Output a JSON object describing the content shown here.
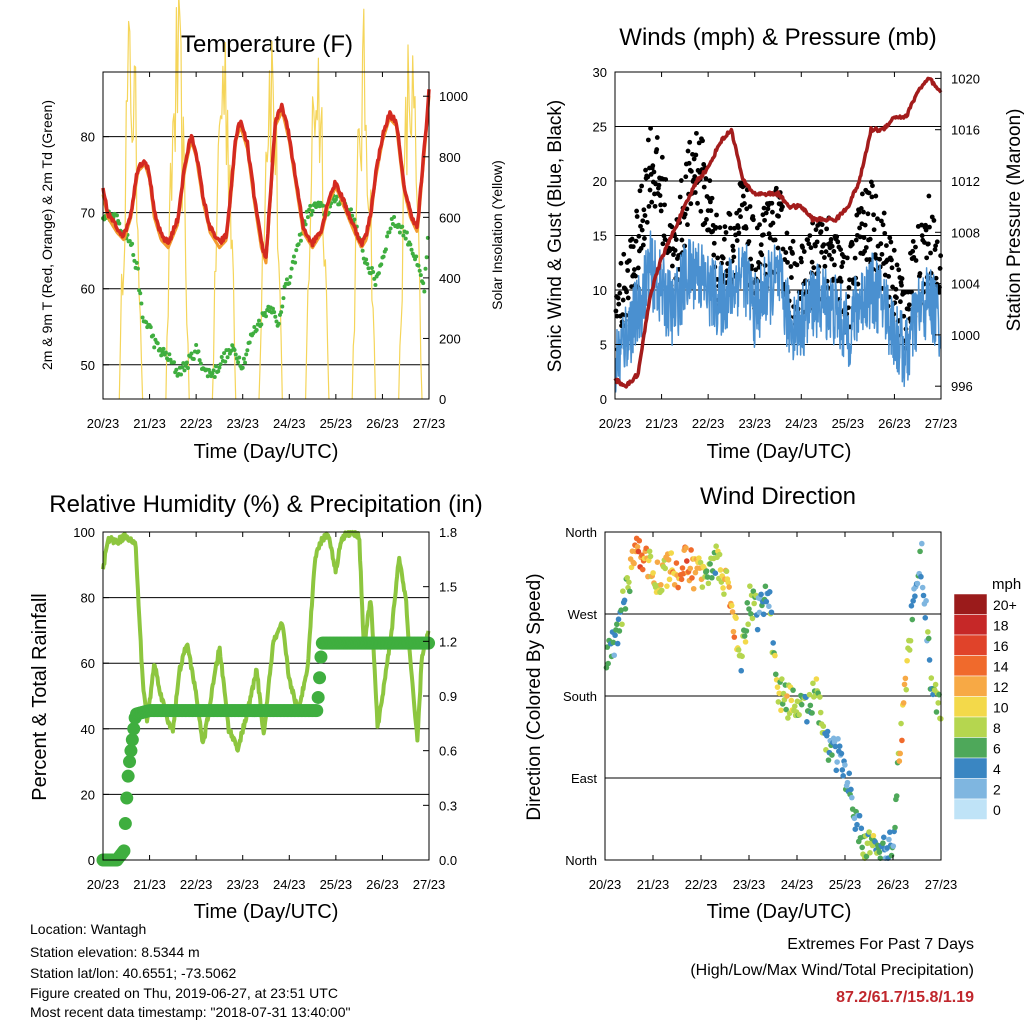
{
  "panels": {
    "temperature": {
      "title": "Temperature (F)",
      "xlabel": "Time (Day/UTC)",
      "ylabel_left": "2m & 9m T (Red, Orange) & 2m Td (Green)",
      "ylabel_right": "Solar Insolation (Yellow)",
      "xticks": [
        "20/23",
        "21/23",
        "22/23",
        "23/23",
        "24/23",
        "25/23",
        "26/23",
        "27/23"
      ],
      "yticks_left": [
        "50",
        "60",
        "70",
        "80"
      ],
      "yticks_right": [
        "0",
        "200",
        "400",
        "600",
        "800",
        "1000"
      ]
    },
    "winds": {
      "title": "Winds (mph) & Pressure (mb)",
      "xlabel": "Time (Day/UTC)",
      "ylabel_left": "Sonic Wind & Gust (Blue, Black)",
      "ylabel_right": "Station Pressure (Maroon)",
      "xticks": [
        "20/23",
        "21/23",
        "22/23",
        "23/23",
        "24/23",
        "25/23",
        "26/23",
        "27/23"
      ],
      "yticks_left": [
        "0",
        "5",
        "10",
        "15",
        "20",
        "25",
        "30"
      ],
      "yticks_right": [
        "996",
        "1000",
        "1004",
        "1008",
        "1012",
        "1016",
        "1020"
      ]
    },
    "humidity": {
      "title": "Relative Humidity (%) & Precipitation (in)",
      "xlabel": "Time (Day/UTC)",
      "ylabel_left": "Percent & Total Rainfall",
      "xticks": [
        "20/23",
        "21/23",
        "22/23",
        "23/23",
        "24/23",
        "25/23",
        "26/23",
        "27/23"
      ],
      "yticks_left": [
        "0",
        "20",
        "40",
        "60",
        "80",
        "100"
      ],
      "yticks_right": [
        "0.0",
        "0.3",
        "0.6",
        "0.9",
        "1.2",
        "1.5",
        "1.8"
      ]
    },
    "direction": {
      "title": "Wind Direction",
      "xlabel": "Time (Day/UTC)",
      "ylabel_left": "Direction (Colored By Speed)",
      "xticks": [
        "20/23",
        "21/23",
        "22/23",
        "23/23",
        "24/23",
        "25/23",
        "26/23",
        "27/23"
      ],
      "yticks_left": [
        "North",
        "East",
        "South",
        "West",
        "North"
      ],
      "legend_title": "mph",
      "legend_labels": [
        "20+",
        "18",
        "16",
        "14",
        "12",
        "10",
        "8",
        "6",
        "4",
        "2",
        "0"
      ],
      "legend_colors": [
        "#9b1b1b",
        "#c62828",
        "#e0432a",
        "#f06a2c",
        "#f7a945",
        "#f3d94a",
        "#b5d64f",
        "#4ea85a",
        "#3a86c2",
        "#7fb6e0",
        "#bfe3f7"
      ]
    }
  },
  "footer": {
    "location": "Location: Wantagh",
    "elevation": "Station elevation: 8.5344 m",
    "latlon": "Station lat/lon: 40.6551; -73.5062",
    "created": "Figure created on Thu, 2019-06-27, at 23:51 UTC",
    "recent": "Most recent data timestamp: \"2018-07-31 13:40:00\""
  },
  "extremes": {
    "title": "Extremes For Past 7 Days",
    "subtitle": "(High/Low/Max Wind/Total Precipitation)",
    "values": "87.2/61.7/15.8/1.19"
  },
  "colors": {
    "temp_2m": "#d42a20",
    "temp_9m": "#f29a2e",
    "dewpoint": "#3fae3f",
    "insolation": "#f5d55a",
    "wind": "#4a90d0",
    "gust": "#000000",
    "pressure": "#a31c1c",
    "rh": "#8dc63f",
    "precip": "#3fae3f",
    "extremes": "#c0272d"
  },
  "chart_data": [
    {
      "type": "line",
      "title": "Temperature (F)",
      "xlabel": "Time (Day/UTC)",
      "ylabel": "2m & 9m T (Red, Orange) & 2m Td (Green)",
      "y2label": "Solar Insolation (Yellow)",
      "ylim": [
        45.5,
        88.5
      ],
      "y2lim": [
        0,
        1080
      ],
      "x_range": [
        0,
        7
      ],
      "series": [
        {
          "name": "2m T",
          "axis": "left",
          "x": [
            0,
            0.1,
            0.2,
            0.3,
            0.45,
            0.6,
            0.75,
            0.9,
            1.0,
            1.1,
            1.25,
            1.4,
            1.6,
            1.75,
            1.85,
            1.9,
            2.0,
            2.15,
            2.3,
            2.5,
            2.65,
            2.75,
            2.85,
            2.95,
            3.1,
            3.25,
            3.4,
            3.5,
            3.6,
            3.7,
            3.85,
            4.0,
            4.15,
            4.3,
            4.5,
            4.7,
            4.85,
            5.0,
            5.2,
            5.4,
            5.55,
            5.65,
            5.75,
            5.85,
            6.0,
            6.15,
            6.3,
            6.45,
            6.6,
            6.75,
            6.85,
            6.95,
            7.0
          ],
          "values": [
            73,
            70,
            69,
            68,
            67,
            70,
            76,
            77,
            75,
            70,
            67,
            66,
            69,
            76,
            79,
            80,
            78,
            72,
            68,
            66,
            67,
            73,
            80,
            82,
            79,
            72,
            66,
            64,
            73,
            82,
            84,
            80,
            74,
            68,
            66,
            68,
            72,
            74,
            71,
            68,
            66,
            67,
            70,
            75,
            80,
            83,
            82,
            74,
            70,
            68,
            75,
            82,
            86
          ]
        },
        {
          "name": "2m Td",
          "axis": "left",
          "x": [
            0,
            0.2,
            0.4,
            0.6,
            0.75,
            0.85,
            1.0,
            1.1,
            1.2,
            1.4,
            1.6,
            1.8,
            1.9,
            2.0,
            2.2,
            2.4,
            2.6,
            2.8,
            3.0,
            3.2,
            3.4,
            3.6,
            3.75,
            3.9,
            4.0,
            4.2,
            4.4,
            4.6,
            4.8,
            5.0,
            5.2,
            5.4,
            5.55,
            5.7,
            5.85,
            6.0,
            6.2,
            6.4,
            6.6,
            6.75,
            6.9,
            7.0
          ],
          "values": [
            69,
            70,
            68,
            66,
            62,
            56,
            55,
            53,
            52,
            51,
            49,
            50,
            51,
            52,
            49,
            49,
            51,
            52,
            50,
            54,
            56,
            58,
            55,
            60,
            61,
            66,
            70,
            71,
            70,
            72,
            71,
            69,
            65,
            63,
            61,
            64,
            69,
            68,
            66,
            63,
            60,
            68
          ]
        },
        {
          "name": "Solar Insolation",
          "axis": "right",
          "x": [
            0.35,
            0.55,
            0.65,
            0.8,
            1.35,
            1.55,
            1.65,
            1.8,
            2.35,
            2.55,
            2.7,
            2.85,
            3.35,
            3.55,
            3.65,
            3.8,
            4.35,
            4.55,
            4.65,
            4.8,
            5.35,
            5.55,
            5.7,
            5.85,
            6.35,
            6.55,
            6.7,
            6.85
          ],
          "values": [
            0,
            950,
            1050,
            0,
            0,
            950,
            1050,
            0,
            0,
            880,
            1050,
            0,
            0,
            950,
            1050,
            0,
            0,
            950,
            1050,
            0,
            0,
            900,
            1000,
            0,
            0,
            950,
            1000,
            0
          ]
        }
      ]
    },
    {
      "type": "scatter",
      "title": "Winds (mph) & Pressure (mb)",
      "xlabel": "Time (Day/UTC)",
      "ylabel": "Sonic Wind & Gust (Blue, Black)",
      "y2label": "Station Pressure (Maroon)",
      "ylim": [
        0,
        30
      ],
      "y2lim": [
        995,
        1020.5
      ],
      "x_range": [
        0,
        7
      ],
      "series": [
        {
          "name": "Sonic Wind",
          "axis": "left",
          "x": [
            0,
            0.25,
            0.5,
            0.75,
            1.0,
            1.25,
            1.5,
            1.75,
            2.0,
            2.25,
            2.5,
            2.75,
            3.0,
            3.25,
            3.5,
            3.75,
            4.0,
            4.25,
            4.5,
            4.75,
            5.0,
            5.25,
            5.5,
            5.75,
            6.0,
            6.25,
            6.5,
            6.75,
            7.0
          ],
          "values": [
            3,
            6,
            8,
            12,
            10,
            8,
            11,
            12,
            10,
            9,
            10,
            12,
            8,
            10,
            11,
            7,
            7,
            9,
            9,
            8,
            6,
            9,
            10,
            9,
            6,
            4,
            8,
            9,
            7
          ]
        },
        {
          "name": "Gust",
          "axis": "left",
          "x": [
            0,
            0.25,
            0.5,
            0.75,
            1.0,
            1.25,
            1.5,
            1.75,
            2.0,
            2.25,
            2.5,
            2.75,
            3.0,
            3.25,
            3.5,
            3.75,
            4.0,
            4.25,
            4.5,
            4.75,
            5.0,
            5.25,
            5.5,
            5.75,
            6.0,
            6.25,
            6.5,
            6.75,
            7.0
          ],
          "values": [
            8,
            10,
            14,
            22,
            19,
            12,
            18,
            22,
            18,
            12,
            14,
            17,
            12,
            14,
            16,
            11,
            10,
            13,
            13,
            12,
            9,
            15,
            16,
            14,
            10,
            8,
            12,
            15,
            10
          ]
        },
        {
          "name": "Station Pressure",
          "axis": "right",
          "x": [
            0,
            0.25,
            0.5,
            0.75,
            1.0,
            1.25,
            1.5,
            1.75,
            2.0,
            2.25,
            2.5,
            2.75,
            3.0,
            3.25,
            3.5,
            3.75,
            4.0,
            4.25,
            4.5,
            4.75,
            5.0,
            5.25,
            5.5,
            5.75,
            6.0,
            6.25,
            6.5,
            6.75,
            6.95,
            7.0
          ],
          "values": [
            996.5,
            996,
            997,
            1003,
            1006,
            1008,
            1010,
            1012,
            1013,
            1015,
            1016,
            1012,
            1011,
            1011,
            1011,
            1010,
            1010,
            1009,
            1009,
            1009,
            1010,
            1012,
            1016,
            1016,
            1017,
            1017,
            1019,
            1020,
            1019,
            1019
          ]
        }
      ]
    },
    {
      "type": "line",
      "title": "Relative Humidity (%) & Precipitation (in)",
      "xlabel": "Time (Day/UTC)",
      "ylabel": "Percent & Total Rainfall",
      "ylim": [
        0,
        100
      ],
      "y2lim": [
        0,
        1.8
      ],
      "x_range": [
        0,
        7
      ],
      "series": [
        {
          "name": "RH",
          "axis": "left",
          "x": [
            0,
            0.1,
            0.3,
            0.5,
            0.7,
            0.85,
            0.95,
            1.1,
            1.25,
            1.4,
            1.5,
            1.65,
            1.8,
            1.95,
            2.15,
            2.3,
            2.5,
            2.7,
            2.9,
            3.1,
            3.3,
            3.45,
            3.65,
            3.85,
            4.0,
            4.2,
            4.4,
            4.55,
            4.7,
            4.85,
            5.0,
            5.1,
            5.2,
            5.35,
            5.5,
            5.6,
            5.75,
            5.9,
            6.05,
            6.2,
            6.35,
            6.5,
            6.6,
            6.75,
            6.85,
            7.0
          ],
          "values": [
            88,
            98,
            97,
            99,
            96,
            55,
            42,
            60,
            50,
            42,
            40,
            58,
            66,
            55,
            35,
            48,
            65,
            40,
            34,
            45,
            58,
            38,
            66,
            72,
            55,
            45,
            60,
            92,
            98,
            99,
            88,
            97,
            99,
            100,
            99,
            65,
            80,
            40,
            55,
            70,
            92,
            80,
            60,
            37,
            62,
            70
          ]
        },
        {
          "name": "Total Rainfall",
          "axis": "right",
          "x": [
            0,
            0.3,
            0.45,
            0.5,
            0.55,
            0.6,
            0.7,
            1.0,
            2.0,
            3.0,
            4.0,
            4.6,
            4.65,
            4.7,
            5.0,
            6.0,
            7.0
          ],
          "values": [
            0,
            0,
            0.05,
            0.3,
            0.5,
            0.6,
            0.8,
            0.82,
            0.82,
            0.82,
            0.82,
            0.82,
            1.0,
            1.19,
            1.19,
            1.19,
            1.19
          ]
        }
      ]
    },
    {
      "type": "scatter",
      "title": "Wind Direction",
      "xlabel": "Time (Day/UTC)",
      "ylabel": "Direction (Colored By Speed)",
      "ylim": [
        0,
        360
      ],
      "y_tick_labels": [
        "North",
        "East",
        "South",
        "West",
        "North"
      ],
      "x_range": [
        0,
        7
      ],
      "series": [
        {
          "name": "Direction",
          "x": [
            0.1,
            0.25,
            0.45,
            0.6,
            0.75,
            0.9,
            1.1,
            1.3,
            1.5,
            1.7,
            1.9,
            2.1,
            2.3,
            2.5,
            2.7,
            2.85,
            3.0,
            3.2,
            3.4,
            3.6,
            3.8,
            4.0,
            4.2,
            4.4,
            4.6,
            4.8,
            5.0,
            5.2,
            5.4,
            5.6,
            5.8,
            6.0,
            6.2,
            6.4,
            6.6,
            6.8,
            6.95
          ],
          "values": [
            230,
            240,
            300,
            330,
            340,
            325,
            310,
            320,
            315,
            325,
            315,
            320,
            330,
            305,
            260,
            215,
            285,
            270,
            295,
            185,
            175,
            170,
            165,
            180,
            130,
            120,
            95,
            50,
            10,
            15,
            5,
            25,
            160,
            270,
            330,
            190,
            175
          ],
          "speeds": [
            5,
            4,
            6,
            12,
            14,
            10,
            9,
            11,
            12,
            14,
            10,
            8,
            7,
            10,
            12,
            6,
            8,
            5,
            4,
            8,
            9,
            7,
            6,
            8,
            6,
            4,
            3,
            4,
            6,
            8,
            3,
            4,
            12,
            4,
            3,
            6,
            9
          ]
        }
      ]
    }
  ]
}
